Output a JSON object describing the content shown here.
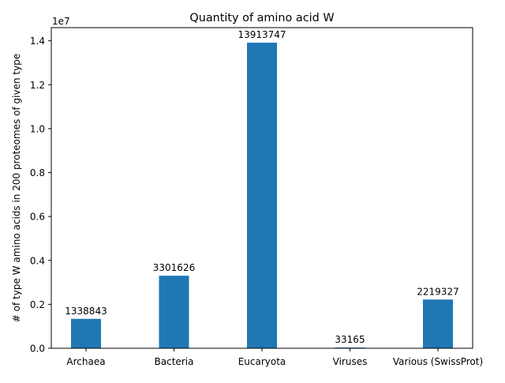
{
  "chart_data": {
    "type": "bar",
    "title": "Quantity of amino acid W",
    "xlabel": "",
    "ylabel": "# of type W amino acids in 200 proteomes of given type",
    "y_scale_note": "1e7",
    "categories": [
      "Archaea",
      "Bacteria",
      "Eucaryota",
      "Viruses",
      "Various (SwissProt)"
    ],
    "values": [
      1338843,
      3301626,
      13913747,
      33165,
      2219327
    ],
    "data_labels": [
      "1338843",
      "3301626",
      "13913747",
      "33165",
      "2219327"
    ],
    "ylim": [
      0,
      14600000
    ],
    "yticks": [
      0,
      2000000,
      4000000,
      6000000,
      8000000,
      10000000,
      12000000,
      14000000
    ],
    "ytick_labels": [
      "0.0",
      "0.2",
      "0.4",
      "0.6",
      "0.8",
      "1.0",
      "1.2",
      "1.4"
    ],
    "bar_color": "#1f77b4",
    "grid": false,
    "legend": "none"
  }
}
